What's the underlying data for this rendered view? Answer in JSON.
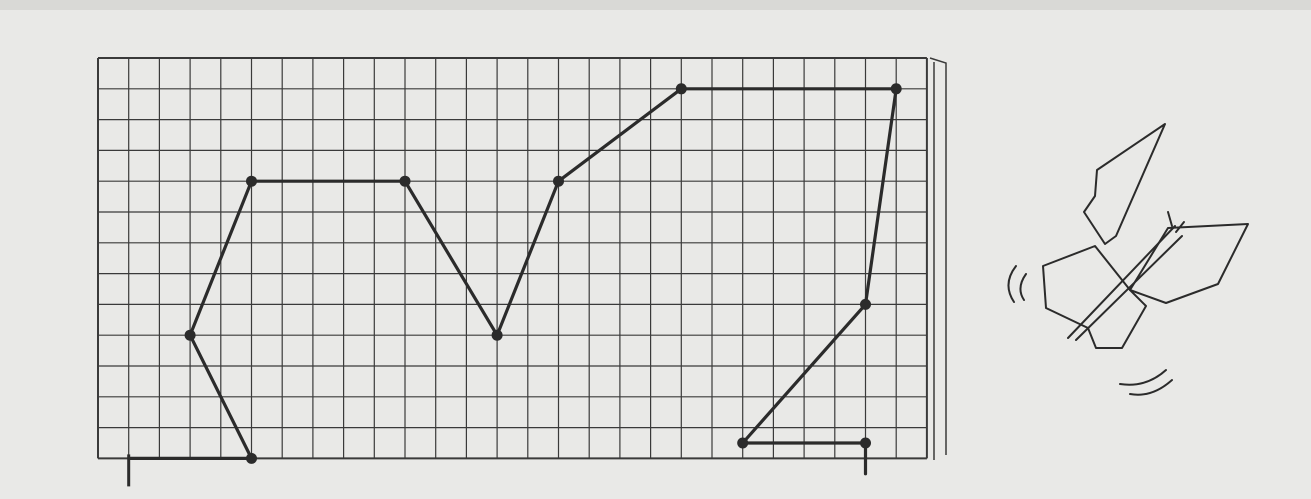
{
  "colors": {
    "paper": "#e9e9e7",
    "paper_shadow": "#d9d9d6",
    "grid": "#3a3a3a",
    "ink": "#2b2b2b"
  },
  "grid": {
    "columns": 27,
    "rows": 13
  },
  "path_points": [
    [
      1,
      13
    ],
    [
      5,
      13
    ],
    [
      3,
      9
    ],
    [
      5,
      4
    ],
    [
      10,
      4
    ],
    [
      13,
      9
    ],
    [
      15,
      4
    ],
    [
      19,
      1
    ],
    [
      26,
      1
    ],
    [
      25,
      8
    ],
    [
      21,
      12.5
    ],
    [
      25,
      12.5
    ],
    [
      25,
      13.5
    ]
  ],
  "vertex_dots": [
    [
      5,
      13
    ],
    [
      3,
      9
    ],
    [
      5,
      4
    ],
    [
      10,
      4
    ],
    [
      13,
      9
    ],
    [
      15,
      4
    ],
    [
      19,
      1
    ],
    [
      26,
      1
    ],
    [
      25,
      8
    ],
    [
      21,
      12.5
    ],
    [
      25,
      12.5
    ]
  ],
  "start_tick": [
    1,
    13
  ],
  "decoration": {
    "butterfly_icon": "butterfly-icon"
  }
}
